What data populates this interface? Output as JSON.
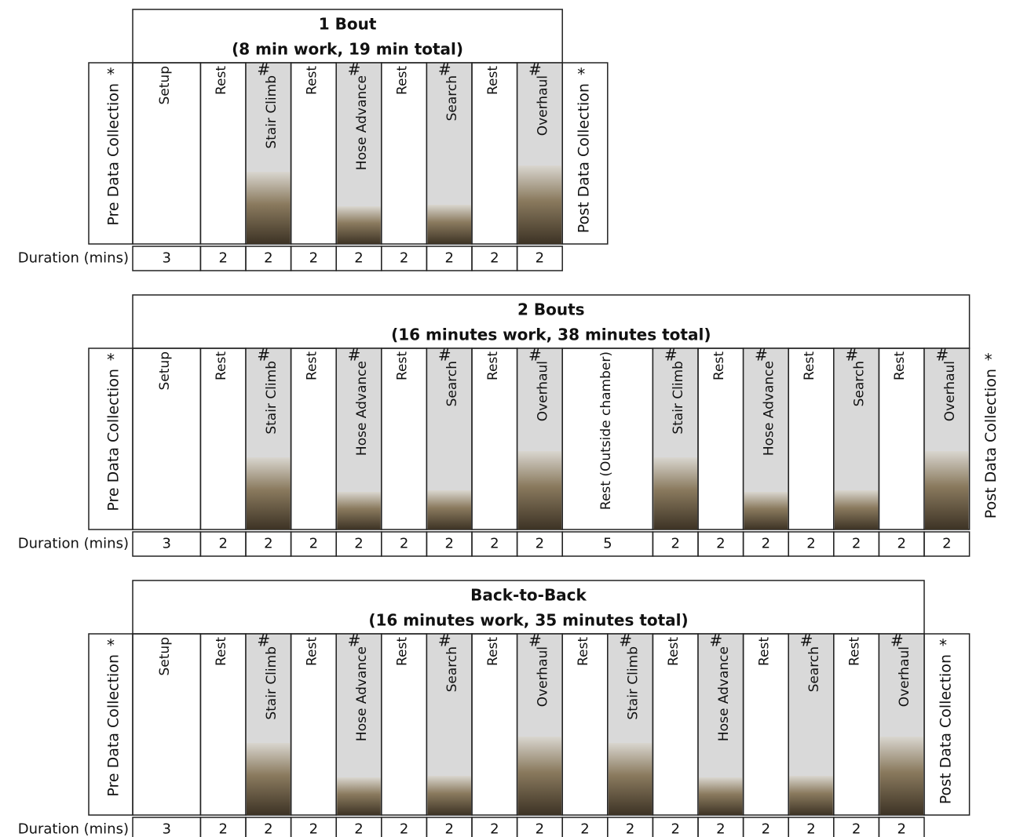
{
  "panels": [
    {
      "title": "1 Bout",
      "subtitle": "(8 min work, 19 min total)",
      "pre": {
        "label": "Pre Data Collection",
        "marker": "*"
      },
      "post": {
        "label": "Post Data Collection",
        "marker": "*"
      },
      "duration_label": "Duration (mins)",
      "columns": [
        {
          "label": "Setup",
          "duration": 3
        },
        {
          "label": "Rest",
          "duration": 2
        },
        {
          "label": "Stair Climb",
          "marker": "#",
          "duration": 2
        },
        {
          "label": "Rest",
          "duration": 2
        },
        {
          "label": "Hose Advance",
          "marker": "#",
          "duration": 2
        },
        {
          "label": "Rest",
          "duration": 2
        },
        {
          "label": "Search",
          "marker": "#",
          "duration": 2
        },
        {
          "label": "Rest",
          "duration": 2
        },
        {
          "label": "Overhaul",
          "marker": "#",
          "duration": 2
        }
      ]
    },
    {
      "title": "2 Bouts",
      "subtitle": "(16 minutes work, 38 minutes total)",
      "pre": {
        "label": "Pre Data Collection",
        "marker": "*"
      },
      "post": {
        "label": "Post Data Collection",
        "marker": "*"
      },
      "duration_label": "Duration (mins)",
      "columns": [
        {
          "label": "Setup",
          "duration": 3
        },
        {
          "label": "Rest",
          "duration": 2
        },
        {
          "label": "Stair Climb",
          "marker": "#",
          "duration": 2
        },
        {
          "label": "Rest",
          "duration": 2
        },
        {
          "label": "Hose Advance",
          "marker": "#",
          "duration": 2
        },
        {
          "label": "Rest",
          "duration": 2
        },
        {
          "label": "Search",
          "marker": "#",
          "duration": 2
        },
        {
          "label": "Rest",
          "duration": 2
        },
        {
          "label": "Overhaul",
          "marker": "#",
          "duration": 2
        },
        {
          "label": "Rest (Outside chamber)",
          "duration": 5
        },
        {
          "label": "Stair Climb",
          "marker": "#",
          "duration": 2
        },
        {
          "label": "Rest",
          "duration": 2
        },
        {
          "label": "Hose Advance",
          "marker": "#",
          "duration": 2
        },
        {
          "label": "Rest",
          "duration": 2
        },
        {
          "label": "Search",
          "marker": "#",
          "duration": 2
        },
        {
          "label": "Rest",
          "duration": 2
        },
        {
          "label": "Overhaul",
          "marker": "#",
          "duration": 2
        }
      ]
    },
    {
      "title": "Back-to-Back",
      "subtitle": "(16 minutes work, 35 minutes total)",
      "pre": {
        "label": "Pre Data Collection",
        "marker": "*"
      },
      "post": {
        "label": "Post Data Collection",
        "marker": "*"
      },
      "duration_label": "Duration (mins)",
      "columns": [
        {
          "label": "Setup",
          "duration": 3
        },
        {
          "label": "Rest",
          "duration": 2
        },
        {
          "label": "Stair Climb",
          "marker": "#",
          "duration": 2
        },
        {
          "label": "Rest",
          "duration": 2
        },
        {
          "label": "Hose Advance",
          "marker": "#",
          "duration": 2
        },
        {
          "label": "Rest",
          "duration": 2
        },
        {
          "label": "Search",
          "marker": "#",
          "duration": 2
        },
        {
          "label": "Rest",
          "duration": 2
        },
        {
          "label": "Overhaul",
          "marker": "#",
          "duration": 2
        },
        {
          "label": "Rest",
          "duration": 2
        },
        {
          "label": "Stair Climb",
          "marker": "#",
          "duration": 2
        },
        {
          "label": "Rest",
          "duration": 2
        },
        {
          "label": "Hose Advance",
          "marker": "#",
          "duration": 2
        },
        {
          "label": "Rest",
          "duration": 2
        },
        {
          "label": "Search",
          "marker": "#",
          "duration": 2
        },
        {
          "label": "Rest",
          "duration": 2
        },
        {
          "label": "Overhaul",
          "marker": "#",
          "duration": 2
        }
      ]
    }
  ]
}
